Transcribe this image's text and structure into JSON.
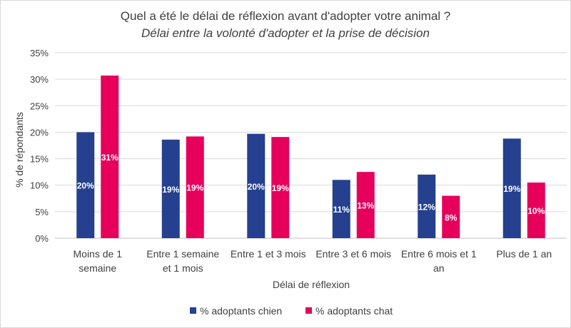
{
  "chart_data": {
    "type": "bar",
    "title": "Quel a été le délai de réflexion avant d'adopter votre animal ?",
    "subtitle": "Délai entre la volonté d'adopter et la prise de décision",
    "xlabel": "Délai de réflexion",
    "ylabel": "% de répondants",
    "ylim": [
      0,
      35
    ],
    "yticks": [
      "0%",
      "5%",
      "10%",
      "15%",
      "20%",
      "25%",
      "30%",
      "35%"
    ],
    "grid": true,
    "legend_position": "bottom",
    "categories": [
      [
        "Moins de 1",
        "semaine"
      ],
      [
        "Entre 1 semaine",
        "et 1 mois"
      ],
      [
        "Entre 1 et 3 mois"
      ],
      [
        "Entre 3 et 6 mois"
      ],
      [
        "Entre 6 mois et 1",
        "an"
      ],
      [
        "Plus de 1 an"
      ]
    ],
    "series": [
      {
        "name": "% adoptants chien",
        "color": "#24408e",
        "values": [
          20,
          18.6,
          19.7,
          11,
          12,
          18.8
        ],
        "labels": [
          "20%",
          "19%",
          "20%",
          "11%",
          "12%",
          "19%"
        ]
      },
      {
        "name": "% adoptants chat",
        "color": "#e6005c",
        "values": [
          30.7,
          19.2,
          19.1,
          12.5,
          8,
          10.5
        ],
        "labels": [
          "31%",
          "19%",
          "19%",
          "13%",
          "8%",
          "10%"
        ]
      }
    ]
  }
}
